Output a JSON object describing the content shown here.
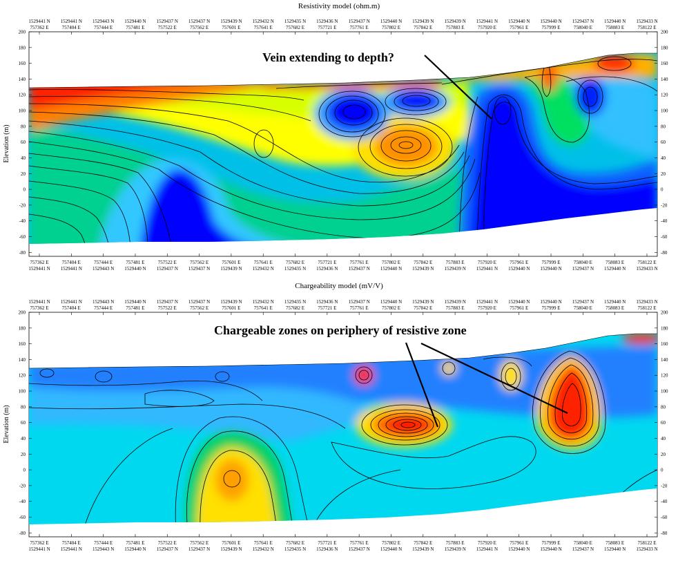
{
  "chart_data": [
    {
      "type": "heatmap",
      "title": "Resistivity model (ohm.m)",
      "ylabel": "Elevation (m)",
      "ylim": [
        -85,
        200
      ],
      "yticks": [
        200,
        180,
        160,
        140,
        120,
        100,
        80,
        60,
        40,
        20,
        0,
        -20,
        -40,
        -60,
        -80
      ],
      "grid": false,
      "contours": true,
      "colormap": [
        "#0000ff",
        "#00aaff",
        "#00e0e0",
        "#00d060",
        "#ffff00",
        "#ffa000",
        "#ff0000"
      ],
      "top_n": [
        "1529441 N",
        "1529441 N",
        "1529443 N",
        "1529440 N",
        "1529437 N",
        "1529437 N",
        "1529439 N",
        "1529432 N",
        "1529435 N",
        "1529436 N",
        "1529437 N",
        "1529440 N",
        "1529439 N",
        "1529439 N",
        "1529441 N",
        "1529440 N",
        "1529440 N",
        "1529437 N",
        "1529440 N",
        "1529433 N"
      ],
      "top_e": [
        "757362 E",
        "757404 E",
        "757444 E",
        "757481 E",
        "757522 E",
        "757562 E",
        "757601 E",
        "757641 E",
        "757682 E",
        "757721 E",
        "757761 E",
        "757802 E",
        "757842 E",
        "757883 E",
        "757920 E",
        "757961 E",
        "757999 E",
        "758040 E",
        "758083 E",
        "758122 E"
      ],
      "bottom_e": [
        "757362 E",
        "757404 E",
        "757444 E",
        "757481 E",
        "757522 E",
        "757562 E",
        "757601 E",
        "757641 E",
        "757682 E",
        "757721 E",
        "757761 E",
        "757802 E",
        "757842 E",
        "757883 E",
        "757920 E",
        "757961 E",
        "757999 E",
        "758040 E",
        "758083 E",
        "758122 E"
      ],
      "bottom_n": [
        "1529441 N",
        "1529441 N",
        "1529443 N",
        "1529440 N",
        "1529437 N",
        "1529437 N",
        "1529439 N",
        "1529432 N",
        "1529435 N",
        "1529436 N",
        "1529437 N",
        "1529440 N",
        "1529439 N",
        "1529439 N",
        "1529441 N",
        "1529440 N",
        "1529440 N",
        "1529437 N",
        "1529440 N",
        "1529433 N"
      ],
      "annotations": [
        {
          "text": "Vein extending to depth?"
        }
      ]
    },
    {
      "type": "heatmap",
      "title": "Chargeability model (mV/V)",
      "ylabel": "Elevation (m)",
      "ylim": [
        -85,
        200
      ],
      "yticks": [
        200,
        180,
        160,
        140,
        120,
        100,
        80,
        60,
        40,
        20,
        0,
        -20,
        -40,
        -60,
        -80
      ],
      "grid": false,
      "contours": true,
      "colormap": [
        "#0060ff",
        "#00c8ff",
        "#00e8e8",
        "#00d060",
        "#ffff00",
        "#ffa000",
        "#ff0000"
      ],
      "top_n": [
        "1529441 N",
        "1529441 N",
        "1529443 N",
        "1529440 N",
        "1529437 N",
        "1529437 N",
        "1529439 N",
        "1529432 N",
        "1529435 N",
        "1529436 N",
        "1529437 N",
        "1529440 N",
        "1529439 N",
        "1529439 N",
        "1529441 N",
        "1529440 N",
        "1529440 N",
        "1529437 N",
        "1529440 N",
        "1529433 N"
      ],
      "top_e": [
        "757362 E",
        "757404 E",
        "757444 E",
        "757481 E",
        "757522 E",
        "757562 E",
        "757601 E",
        "757641 E",
        "757682 E",
        "757721 E",
        "757761 E",
        "757802 E",
        "757842 E",
        "757883 E",
        "757920 E",
        "757961 E",
        "757999 E",
        "758040 E",
        "758083 E",
        "758122 E"
      ],
      "bottom_e": [
        "757362 E",
        "757404 E",
        "757444 E",
        "757481 E",
        "757522 E",
        "757562 E",
        "757601 E",
        "757641 E",
        "757682 E",
        "757721 E",
        "757761 E",
        "757802 E",
        "757842 E",
        "757883 E",
        "757920 E",
        "757961 E",
        "757999 E",
        "758040 E",
        "758083 E",
        "758122 E"
      ],
      "bottom_n": [
        "1529441 N",
        "1529441 N",
        "1529443 N",
        "1529440 N",
        "1529437 N",
        "1529437 N",
        "1529439 N",
        "1529432 N",
        "1529435 N",
        "1529436 N",
        "1529437 N",
        "1529440 N",
        "1529439 N",
        "1529439 N",
        "1529441 N",
        "1529440 N",
        "1529440 N",
        "1529437 N",
        "1529440 N",
        "1529433 N"
      ],
      "annotations": [
        {
          "text": "Chargeable zones on periphery of resistive zone"
        }
      ]
    }
  ]
}
